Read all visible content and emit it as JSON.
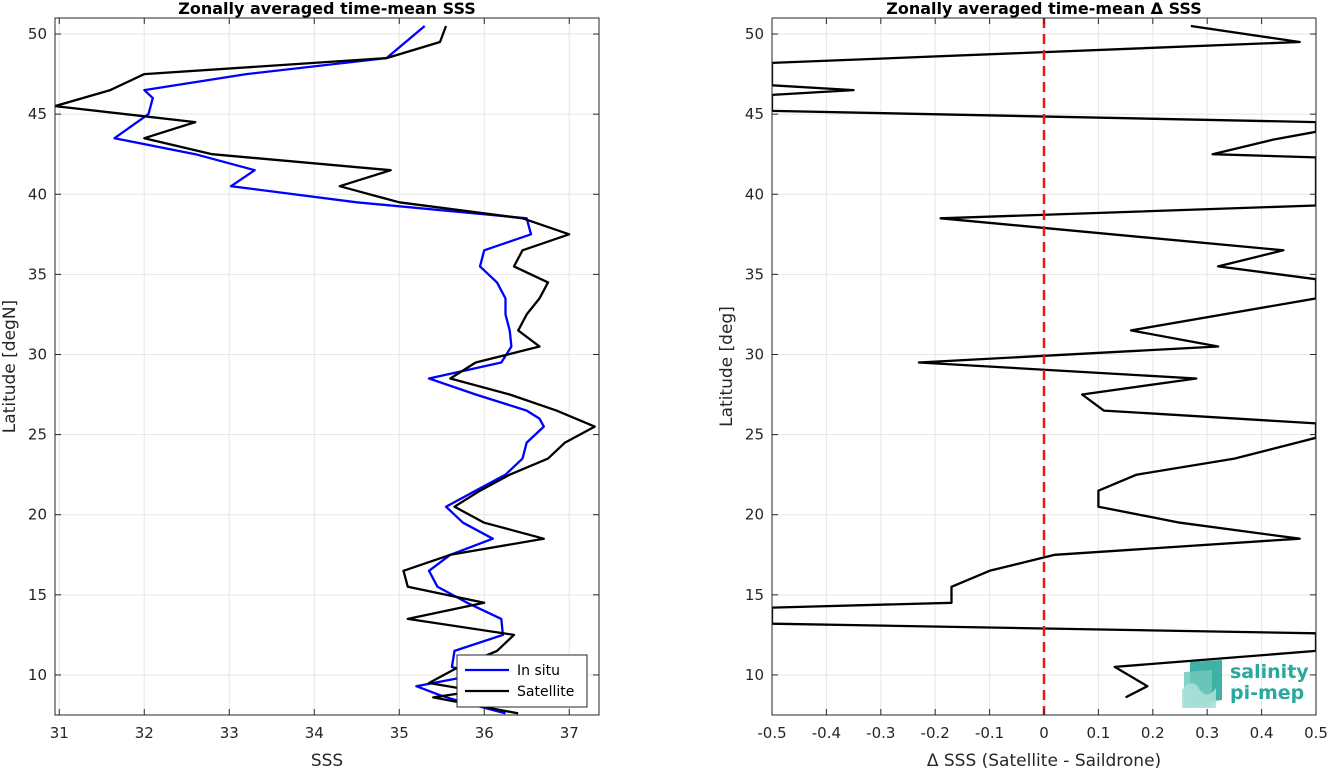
{
  "chart_data": [
    {
      "type": "line",
      "title": "Zonally averaged time-mean SSS",
      "xlabel": "SSS",
      "ylabel": "Latitude [degN]",
      "xlim": [
        30.95,
        37.35
      ],
      "ylim": [
        7.5,
        51
      ],
      "xticks": [
        31,
        32,
        33,
        34,
        35,
        36,
        37
      ],
      "yticks": [
        10,
        15,
        20,
        25,
        30,
        35,
        40,
        45,
        50
      ],
      "grid": true,
      "legend": "bottom-right",
      "series": [
        {
          "name": "In situ",
          "color": "#0000ff",
          "points": [
            [
              35.3,
              50.5
            ],
            [
              34.85,
              48.5
            ],
            [
              33.2,
              47.5
            ],
            [
              32.0,
              46.5
            ],
            [
              32.1,
              46
            ],
            [
              32.05,
              45
            ],
            [
              31.65,
              43.5
            ],
            [
              32.6,
              42.5
            ],
            [
              33.3,
              41.5
            ],
            [
              33.02,
              40.5
            ],
            [
              34.5,
              39.5
            ],
            [
              36.5,
              38.5
            ],
            [
              36.55,
              37.5
            ],
            [
              36.0,
              36.5
            ],
            [
              35.95,
              35.5
            ],
            [
              36.15,
              34.5
            ],
            [
              36.25,
              33.5
            ],
            [
              36.25,
              32.5
            ],
            [
              36.3,
              31.5
            ],
            [
              36.32,
              30.5
            ],
            [
              36.2,
              29.5
            ],
            [
              35.35,
              28.5
            ],
            [
              35.9,
              27.5
            ],
            [
              36.5,
              26.5
            ],
            [
              36.65,
              26
            ],
            [
              36.7,
              25.5
            ],
            [
              36.5,
              24.5
            ],
            [
              36.45,
              23.5
            ],
            [
              36.25,
              22.5
            ],
            [
              35.9,
              21.5
            ],
            [
              35.55,
              20.5
            ],
            [
              35.75,
              19.5
            ],
            [
              36.1,
              18.5
            ],
            [
              35.6,
              17.5
            ],
            [
              35.35,
              16.5
            ],
            [
              35.45,
              15.5
            ],
            [
              35.8,
              14.5
            ],
            [
              36.2,
              13.5
            ],
            [
              36.22,
              12.5
            ],
            [
              35.65,
              11.5
            ],
            [
              35.62,
              10.5
            ],
            [
              35.9,
              10
            ],
            [
              35.2,
              9.3
            ],
            [
              35.5,
              8.7
            ],
            [
              35.75,
              8.3
            ],
            [
              36.25,
              7.6
            ]
          ]
        },
        {
          "name": "Satellite",
          "color": "#000000",
          "points": [
            [
              35.55,
              50.5
            ],
            [
              35.48,
              49.5
            ],
            [
              34.85,
              48.5
            ],
            [
              32.0,
              47.5
            ],
            [
              31.6,
              46.5
            ],
            [
              30.95,
              45.5
            ],
            [
              32.6,
              44.5
            ],
            [
              32.0,
              43.5
            ],
            [
              32.8,
              42.5
            ],
            [
              34.9,
              41.5
            ],
            [
              34.3,
              40.5
            ],
            [
              35.0,
              39.5
            ],
            [
              36.45,
              38.5
            ],
            [
              37.0,
              37.5
            ],
            [
              36.45,
              36.5
            ],
            [
              36.35,
              35.5
            ],
            [
              36.75,
              34.5
            ],
            [
              36.65,
              33.5
            ],
            [
              36.5,
              32.5
            ],
            [
              36.4,
              31.5
            ],
            [
              36.65,
              30.5
            ],
            [
              35.9,
              29.5
            ],
            [
              35.6,
              28.5
            ],
            [
              36.3,
              27.5
            ],
            [
              36.85,
              26.5
            ],
            [
              37.3,
              25.5
            ],
            [
              36.95,
              24.5
            ],
            [
              36.75,
              23.5
            ],
            [
              36.3,
              22.5
            ],
            [
              35.95,
              21.5
            ],
            [
              35.65,
              20.5
            ],
            [
              36.0,
              19.5
            ],
            [
              36.7,
              18.5
            ],
            [
              35.6,
              17.5
            ],
            [
              35.05,
              16.5
            ],
            [
              35.1,
              15.5
            ],
            [
              36.0,
              14.5
            ],
            [
              35.1,
              13.5
            ],
            [
              36.35,
              12.5
            ],
            [
              36.15,
              11.5
            ],
            [
              35.7,
              10.5
            ],
            [
              35.35,
              9.5
            ],
            [
              35.9,
              9
            ],
            [
              35.4,
              8.6
            ],
            [
              36.4,
              7.6
            ]
          ]
        }
      ]
    },
    {
      "type": "line",
      "title": "Zonally averaged time-mean Δ SSS",
      "xlabel": "Δ SSS (Satellite - Saildrone)",
      "ylabel": "Latitude [deg]",
      "xlim": [
        -0.5,
        0.5
      ],
      "ylim": [
        7.5,
        51
      ],
      "xticks": [
        -0.5,
        -0.4,
        -0.3,
        -0.2,
        -0.1,
        0,
        0.1,
        0.2,
        0.3,
        0.4,
        0.5
      ],
      "xtick_labels": [
        "-0.5",
        "-0.4",
        "-0.3",
        "-0.2",
        "-0.1",
        "0",
        "0.1",
        "0.2",
        "0.3",
        "0.4",
        "0.5"
      ],
      "yticks": [
        10,
        15,
        20,
        25,
        30,
        35,
        40,
        45,
        50
      ],
      "grid": true,
      "reference_line": {
        "x": 0,
        "color": "#e41a1c",
        "style": "dashed"
      },
      "series": [
        {
          "color": "#000000",
          "points": [
            [
              0.27,
              50.5
            ],
            [
              0.47,
              49.5
            ],
            [
              -0.5,
              48.2
            ],
            [
              -0.5,
              46.8
            ],
            [
              -0.35,
              46.5
            ],
            [
              -0.5,
              46.2
            ],
            [
              -0.5,
              45.2
            ],
            [
              0.5,
              44.5
            ],
            [
              0.5,
              43.9
            ],
            [
              0.42,
              43.4
            ],
            [
              0.31,
              42.5
            ],
            [
              0.5,
              42.3
            ],
            [
              0.5,
              39.3
            ],
            [
              -0.19,
              38.5
            ],
            [
              0.44,
              36.5
            ],
            [
              0.32,
              35.5
            ],
            [
              0.5,
              34.7
            ],
            [
              0.5,
              33.5
            ],
            [
              0.16,
              31.5
            ],
            [
              0.32,
              30.5
            ],
            [
              -0.23,
              29.5
            ],
            [
              0.28,
              28.5
            ],
            [
              0.07,
              27.5
            ],
            [
              0.11,
              26.5
            ],
            [
              0.5,
              25.7
            ],
            [
              0.5,
              24.8
            ],
            [
              0.35,
              23.5
            ],
            [
              0.17,
              22.5
            ],
            [
              0.1,
              21.5
            ],
            [
              0.1,
              20.5
            ],
            [
              0.25,
              19.5
            ],
            [
              0.47,
              18.5
            ],
            [
              0.02,
              17.5
            ],
            [
              -0.1,
              16.5
            ],
            [
              -0.17,
              15.5
            ],
            [
              -0.17,
              14.5
            ],
            [
              -0.5,
              14.2
            ],
            [
              -0.5,
              13.2
            ],
            [
              0.5,
              12.6
            ],
            [
              0.5,
              11.5
            ],
            [
              0.13,
              10.5
            ],
            [
              0.19,
              9.3
            ],
            [
              0.15,
              8.6
            ]
          ]
        }
      ]
    }
  ],
  "legend": {
    "labels": [
      "In situ",
      "Satellite"
    ]
  },
  "logo": {
    "line1": "salinity",
    "line2": "pi-mep",
    "color": "#2aa89b"
  }
}
